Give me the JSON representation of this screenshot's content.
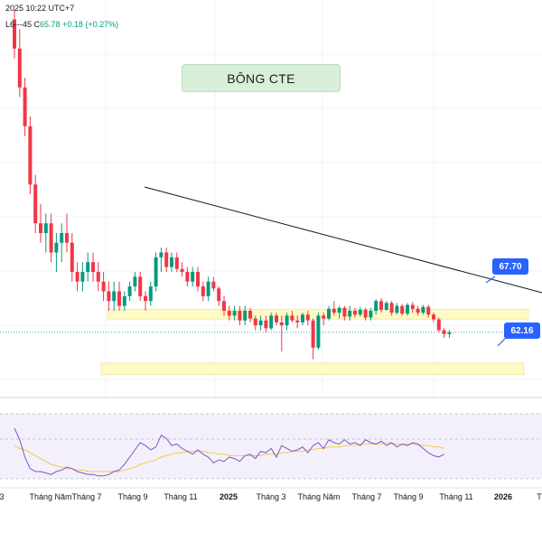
{
  "header": {
    "line1": "2025 10:22 UTC+7",
    "line2_prefix": "L",
    "low": "6---45",
    "close_label": "C",
    "close": "65.78",
    "change": "+0.18 (+0.27%)"
  },
  "annotation": {
    "title": "BÔNG CTE"
  },
  "levels": {
    "upper_label": "67.70",
    "lower_label": "62.16"
  },
  "colors": {
    "up": "#089981",
    "down": "#f23645",
    "zone": "#fff9c4",
    "rsi": "#7e57c2",
    "ma": "#f7c948",
    "label": "#2962ff"
  },
  "chart_data": {
    "type": "candlestick",
    "upper_level": 67.7,
    "lower_level": 62.16,
    "current_price": 65.78,
    "x_tick_labels": [
      "3",
      "Tháng Năm",
      "Tháng 7",
      "Tháng 9",
      "Tháng 11",
      "2025",
      "Tháng 3",
      "Tháng Năm",
      "Tháng 7",
      "Tháng 9",
      "Tháng 11",
      "2026",
      "T"
    ],
    "candles": [
      {
        "o": 98,
        "h": 99,
        "l": 94,
        "c": 95
      },
      {
        "o": 95,
        "h": 97,
        "l": 90,
        "c": 91
      },
      {
        "o": 91,
        "h": 92,
        "l": 86,
        "c": 87
      },
      {
        "o": 87,
        "h": 88,
        "l": 80,
        "c": 81
      },
      {
        "o": 81,
        "h": 82,
        "l": 76,
        "c": 77
      },
      {
        "o": 77,
        "h": 79,
        "l": 75,
        "c": 76
      },
      {
        "o": 76,
        "h": 78,
        "l": 74,
        "c": 77
      },
      {
        "o": 77,
        "h": 78,
        "l": 73,
        "c": 74
      },
      {
        "o": 74,
        "h": 76,
        "l": 72,
        "c": 75
      },
      {
        "o": 75,
        "h": 77,
        "l": 73,
        "c": 76
      },
      {
        "o": 76,
        "h": 78,
        "l": 74,
        "c": 75
      },
      {
        "o": 75,
        "h": 76,
        "l": 71,
        "c": 72
      },
      {
        "o": 72,
        "h": 73,
        "l": 70,
        "c": 71
      },
      {
        "o": 71,
        "h": 73,
        "l": 70,
        "c": 72
      },
      {
        "o": 72,
        "h": 74,
        "l": 71,
        "c": 73
      },
      {
        "o": 73,
        "h": 74,
        "l": 71,
        "c": 72
      },
      {
        "o": 72,
        "h": 73,
        "l": 70,
        "c": 71
      },
      {
        "o": 71,
        "h": 72,
        "l": 69,
        "c": 70
      },
      {
        "o": 70,
        "h": 71,
        "l": 68,
        "c": 69
      },
      {
        "o": 69,
        "h": 71,
        "l": 68,
        "c": 70
      },
      {
        "o": 70,
        "h": 71,
        "l": 68,
        "c": 68.5
      },
      {
        "o": 68.5,
        "h": 70,
        "l": 68,
        "c": 69.5
      },
      {
        "o": 69.5,
        "h": 71,
        "l": 69,
        "c": 70.5
      },
      {
        "o": 70.5,
        "h": 72,
        "l": 70,
        "c": 71.5
      },
      {
        "o": 71.5,
        "h": 72,
        "l": 69,
        "c": 69.5
      },
      {
        "o": 69.5,
        "h": 70,
        "l": 68,
        "c": 69
      },
      {
        "o": 69,
        "h": 71,
        "l": 68.5,
        "c": 70.5
      },
      {
        "o": 70.5,
        "h": 74,
        "l": 70,
        "c": 73.5
      },
      {
        "o": 73.5,
        "h": 74.5,
        "l": 72,
        "c": 74
      },
      {
        "o": 74,
        "h": 74.5,
        "l": 72,
        "c": 72.5
      },
      {
        "o": 72.5,
        "h": 74,
        "l": 72,
        "c": 73.5
      },
      {
        "o": 73.5,
        "h": 74,
        "l": 72,
        "c": 72.3
      },
      {
        "o": 72.3,
        "h": 73,
        "l": 71.5,
        "c": 72
      },
      {
        "o": 72,
        "h": 72.5,
        "l": 70.5,
        "c": 71
      },
      {
        "o": 71,
        "h": 72.5,
        "l": 70.5,
        "c": 72
      },
      {
        "o": 72,
        "h": 72.5,
        "l": 70,
        "c": 70.5
      },
      {
        "o": 70.5,
        "h": 71,
        "l": 69,
        "c": 69.5
      },
      {
        "o": 69.5,
        "h": 71.5,
        "l": 69,
        "c": 71
      },
      {
        "o": 71,
        "h": 71.5,
        "l": 70,
        "c": 70.3
      },
      {
        "o": 70.3,
        "h": 70.5,
        "l": 68.5,
        "c": 69
      },
      {
        "o": 69,
        "h": 69.5,
        "l": 67.5,
        "c": 68
      },
      {
        "o": 68,
        "h": 68.5,
        "l": 67,
        "c": 67.5
      },
      {
        "o": 67.5,
        "h": 68.5,
        "l": 67,
        "c": 68
      },
      {
        "o": 68,
        "h": 68.5,
        "l": 66.5,
        "c": 67
      },
      {
        "o": 67,
        "h": 68.5,
        "l": 66.5,
        "c": 68
      },
      {
        "o": 68,
        "h": 68.3,
        "l": 66.8,
        "c": 67.2
      },
      {
        "o": 67.2,
        "h": 67.5,
        "l": 66,
        "c": 66.5
      },
      {
        "o": 66.5,
        "h": 67.5,
        "l": 66,
        "c": 67
      },
      {
        "o": 67,
        "h": 67.5,
        "l": 65.8,
        "c": 66.2
      },
      {
        "o": 66.2,
        "h": 67.8,
        "l": 66,
        "c": 67.5
      },
      {
        "o": 67.5,
        "h": 67.8,
        "l": 66.5,
        "c": 66.8
      },
      {
        "o": 66.8,
        "h": 67.5,
        "l": 63.8,
        "c": 66.5
      },
      {
        "o": 66.5,
        "h": 67.8,
        "l": 66,
        "c": 67.5
      },
      {
        "o": 67.5,
        "h": 68,
        "l": 66.8,
        "c": 67
      },
      {
        "o": 67,
        "h": 67.5,
        "l": 66.2,
        "c": 66.8
      },
      {
        "o": 66.8,
        "h": 67.8,
        "l": 66.5,
        "c": 67.6
      },
      {
        "o": 67.6,
        "h": 68,
        "l": 66.5,
        "c": 67
      },
      {
        "o": 67,
        "h": 67.2,
        "l": 63,
        "c": 64.2
      },
      {
        "o": 64.2,
        "h": 67.8,
        "l": 64,
        "c": 67.5
      },
      {
        "o": 67.5,
        "h": 67.8,
        "l": 66.5,
        "c": 67.2
      },
      {
        "o": 67.2,
        "h": 68.5,
        "l": 67,
        "c": 68.2
      },
      {
        "o": 68.2,
        "h": 69,
        "l": 67.5,
        "c": 67.8
      },
      {
        "o": 67.8,
        "h": 68.5,
        "l": 67.2,
        "c": 68.3
      },
      {
        "o": 68.3,
        "h": 68.5,
        "l": 67,
        "c": 67.4
      },
      {
        "o": 67.4,
        "h": 68.5,
        "l": 67,
        "c": 68
      },
      {
        "o": 68,
        "h": 68.3,
        "l": 67.3,
        "c": 67.6
      },
      {
        "o": 67.6,
        "h": 68.4,
        "l": 67.4,
        "c": 68.1
      },
      {
        "o": 68.1,
        "h": 68.3,
        "l": 67,
        "c": 67.3
      },
      {
        "o": 67.3,
        "h": 68.3,
        "l": 67,
        "c": 68
      },
      {
        "o": 68,
        "h": 69.2,
        "l": 67.6,
        "c": 69
      },
      {
        "o": 69,
        "h": 69.3,
        "l": 67.8,
        "c": 68.1
      },
      {
        "o": 68.1,
        "h": 69,
        "l": 68,
        "c": 68.8
      },
      {
        "o": 68.8,
        "h": 69,
        "l": 67.5,
        "c": 67.8
      },
      {
        "o": 67.8,
        "h": 68.8,
        "l": 67.6,
        "c": 68.5
      },
      {
        "o": 68.5,
        "h": 68.7,
        "l": 67.5,
        "c": 67.7
      },
      {
        "o": 67.7,
        "h": 68.8,
        "l": 67.5,
        "c": 68.6
      },
      {
        "o": 68.6,
        "h": 68.9,
        "l": 67.8,
        "c": 68.2
      },
      {
        "o": 68.2,
        "h": 68.5,
        "l": 67.5,
        "c": 67.8
      },
      {
        "o": 67.8,
        "h": 68.6,
        "l": 67.6,
        "c": 68.4
      },
      {
        "o": 68.4,
        "h": 68.6,
        "l": 67.3,
        "c": 67.6
      },
      {
        "o": 67.6,
        "h": 67.8,
        "l": 66.8,
        "c": 67.1
      },
      {
        "o": 67.1,
        "h": 67.3,
        "l": 65.8,
        "c": 66
      },
      {
        "o": 66,
        "h": 66.2,
        "l": 65.2,
        "c": 65.6
      },
      {
        "o": 65.6,
        "h": 66,
        "l": 65.2,
        "c": 65.78
      }
    ],
    "rsi": [
      60,
      52,
      40,
      32,
      30,
      30,
      29,
      28,
      30,
      31,
      33,
      32,
      30,
      29,
      28,
      28,
      27,
      27,
      28,
      30,
      31,
      35,
      40,
      45,
      50,
      48,
      45,
      47,
      55,
      53,
      48,
      49,
      46,
      44,
      42,
      45,
      42,
      40,
      36,
      38,
      37,
      40,
      39,
      37,
      41,
      42,
      39,
      44,
      43,
      46,
      40,
      48,
      46,
      44,
      45,
      47,
      43,
      48,
      50,
      46,
      52,
      50,
      49,
      52,
      49,
      50,
      48,
      52,
      50,
      49,
      51,
      48,
      50,
      47,
      49,
      48,
      50,
      49,
      46,
      43,
      41,
      40,
      42
    ],
    "rsi_ma": [
      48,
      46,
      45,
      43,
      41,
      39,
      37,
      35,
      34,
      33,
      32,
      32,
      31,
      31,
      30,
      30,
      30,
      30,
      30,
      30,
      30,
      31,
      32,
      33,
      35,
      36,
      37,
      38,
      40,
      41,
      42,
      43,
      43,
      44,
      44,
      44,
      44,
      43,
      43,
      42,
      42,
      41,
      41,
      41,
      41,
      41,
      41,
      41,
      42,
      42,
      42,
      43,
      43,
      44,
      44,
      44,
      45,
      45,
      46,
      46,
      47,
      47,
      47,
      48,
      48,
      48,
      49,
      49,
      49,
      49,
      49,
      50,
      49,
      49,
      49,
      49,
      49,
      49,
      48,
      48,
      47,
      47,
      46
    ]
  }
}
